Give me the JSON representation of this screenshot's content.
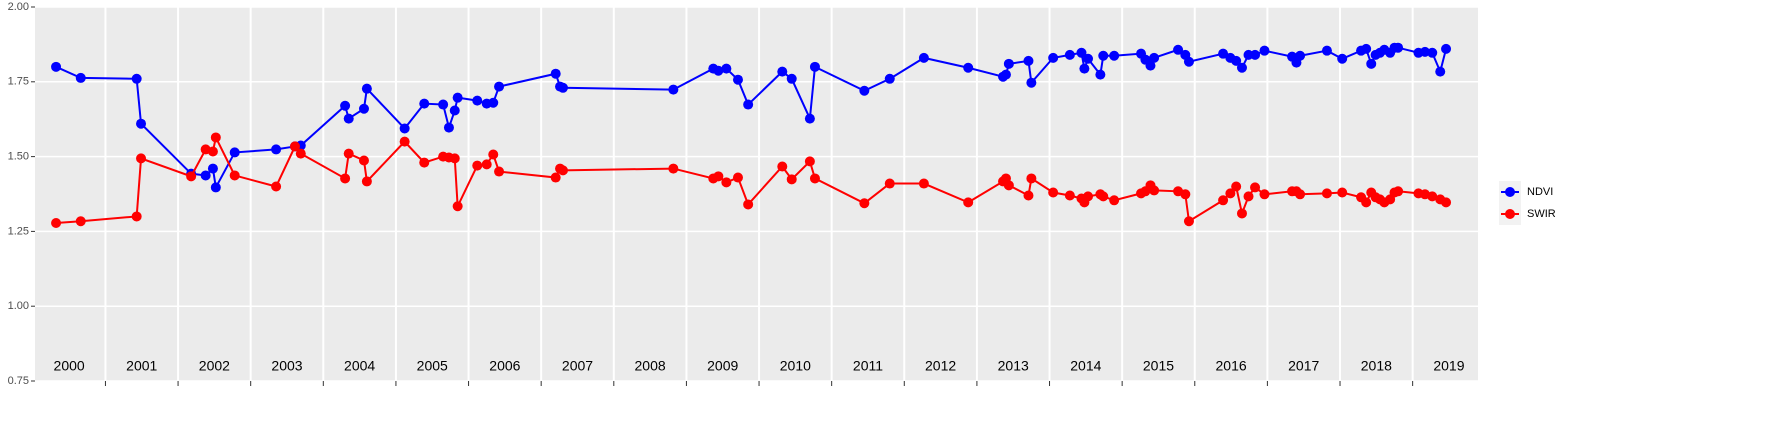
{
  "chart_data": {
    "type": "line",
    "x": [
      2000.32,
      2000.66,
      2001.43,
      2001.49,
      2002.18,
      2002.38,
      2002.48,
      2002.52,
      2002.78,
      2003.35,
      2003.61,
      2003.69,
      2004.3,
      2004.35,
      2004.56,
      2004.6,
      2005.12,
      2005.39,
      2005.65,
      2005.73,
      2005.81,
      2005.85,
      2006.12,
      2006.25,
      2006.34,
      2006.42,
      2007.2,
      2007.26,
      2007.3,
      2008.82,
      2009.37,
      2009.44,
      2009.55,
      2009.71,
      2009.85,
      2010.32,
      2010.45,
      2010.7,
      2010.77,
      2011.45,
      2011.8,
      2012.27,
      2012.88,
      2013.36,
      2013.4,
      2013.44,
      2013.71,
      2013.75,
      2014.05,
      2014.28,
      2014.44,
      2014.48,
      2014.53,
      2014.7,
      2014.74,
      2014.89,
      2015.26,
      2015.32,
      2015.39,
      2015.44,
      2015.77,
      2015.87,
      2015.92,
      2016.39,
      2016.49,
      2016.57,
      2016.65,
      2016.74,
      2016.83,
      2016.96,
      2017.34,
      2017.4,
      2017.45,
      2017.82,
      2018.03,
      2018.29,
      2018.36,
      2018.43,
      2018.49,
      2018.55,
      2018.61,
      2018.69,
      2018.75,
      2018.8,
      2019.08,
      2019.17,
      2019.27,
      2019.38,
      2019.46
    ],
    "series": [
      {
        "name": "NDVI",
        "color": "#0000ff",
        "values": [
          1.8,
          1.763,
          1.76,
          1.61,
          1.443,
          1.437,
          1.46,
          1.397,
          1.514,
          1.524,
          1.534,
          1.537,
          1.67,
          1.627,
          1.66,
          1.727,
          1.594,
          1.677,
          1.674,
          1.597,
          1.654,
          1.697,
          1.687,
          1.677,
          1.68,
          1.734,
          1.777,
          1.734,
          1.73,
          1.724,
          1.794,
          1.787,
          1.794,
          1.757,
          1.674,
          1.784,
          1.76,
          1.627,
          1.8,
          1.72,
          1.76,
          1.83,
          1.797,
          1.767,
          1.774,
          1.81,
          1.82,
          1.747,
          1.83,
          1.84,
          1.847,
          1.794,
          1.827,
          1.774,
          1.837,
          1.837,
          1.844,
          1.824,
          1.804,
          1.83,
          1.857,
          1.84,
          1.817,
          1.844,
          1.83,
          1.82,
          1.797,
          1.84,
          1.84,
          1.854,
          1.834,
          1.814,
          1.837,
          1.854,
          1.827,
          1.854,
          1.86,
          1.81,
          1.84,
          1.847,
          1.857,
          1.847,
          1.864,
          1.864,
          1.847,
          1.85,
          1.847,
          1.784,
          1.86
        ]
      },
      {
        "name": "SWIR",
        "color": "#ff0000",
        "values": [
          1.278,
          1.284,
          1.3,
          1.494,
          1.434,
          1.524,
          1.517,
          1.564,
          1.437,
          1.4,
          1.534,
          1.51,
          1.427,
          1.51,
          1.487,
          1.417,
          1.55,
          1.48,
          1.5,
          1.497,
          1.494,
          1.334,
          1.47,
          1.474,
          1.507,
          1.45,
          1.43,
          1.46,
          1.454,
          1.46,
          1.427,
          1.434,
          1.414,
          1.43,
          1.34,
          1.467,
          1.424,
          1.484,
          1.427,
          1.344,
          1.41,
          1.41,
          1.347,
          1.417,
          1.427,
          1.404,
          1.37,
          1.427,
          1.38,
          1.37,
          1.36,
          1.347,
          1.367,
          1.374,
          1.367,
          1.354,
          1.377,
          1.384,
          1.404,
          1.387,
          1.384,
          1.374,
          1.284,
          1.354,
          1.377,
          1.4,
          1.31,
          1.367,
          1.397,
          1.374,
          1.384,
          1.384,
          1.374,
          1.377,
          1.38,
          1.364,
          1.347,
          1.38,
          1.364,
          1.357,
          1.347,
          1.357,
          1.38,
          1.384,
          1.377,
          1.374,
          1.367,
          1.357,
          1.347
        ]
      }
    ],
    "xlim": [
      2000.03,
      2019.9
    ],
    "xticks": [
      {
        "value": 2000.5,
        "label": "2000"
      },
      {
        "value": 2001.5,
        "label": "2001"
      },
      {
        "value": 2002.5,
        "label": "2002"
      },
      {
        "value": 2003.5,
        "label": "2003"
      },
      {
        "value": 2004.5,
        "label": "2004"
      },
      {
        "value": 2005.5,
        "label": "2005"
      },
      {
        "value": 2006.5,
        "label": "2006"
      },
      {
        "value": 2007.5,
        "label": "2007"
      },
      {
        "value": 2008.5,
        "label": "2008"
      },
      {
        "value": 2009.5,
        "label": "2009"
      },
      {
        "value": 2010.5,
        "label": "2010"
      },
      {
        "value": 2011.5,
        "label": "2011"
      },
      {
        "value": 2012.5,
        "label": "2012"
      },
      {
        "value": 2013.5,
        "label": "2013"
      },
      {
        "value": 2014.5,
        "label": "2014"
      },
      {
        "value": 2015.5,
        "label": "2015"
      },
      {
        "value": 2016.5,
        "label": "2016"
      },
      {
        "value": 2017.5,
        "label": "2017"
      },
      {
        "value": 2018.5,
        "label": "2018"
      },
      {
        "value": 2019.5,
        "label": "2019"
      }
    ],
    "xbreaks": [
      2001,
      2002,
      2003,
      2004,
      2005,
      2006,
      2007,
      2008,
      2009,
      2010,
      2011,
      2012,
      2013,
      2014,
      2015,
      2016,
      2017,
      2018,
      2019
    ],
    "ylim": [
      0.75,
      2.0
    ],
    "yticks": [
      {
        "value": 0.75,
        "label": "0.75"
      },
      {
        "value": 1.0,
        "label": "1.00"
      },
      {
        "value": 1.25,
        "label": "1.25"
      },
      {
        "value": 1.5,
        "label": "1.50"
      },
      {
        "value": 1.75,
        "label": "1.75"
      },
      {
        "value": 2.0,
        "label": "2.00"
      }
    ],
    "grid": true,
    "legend": "right"
  }
}
